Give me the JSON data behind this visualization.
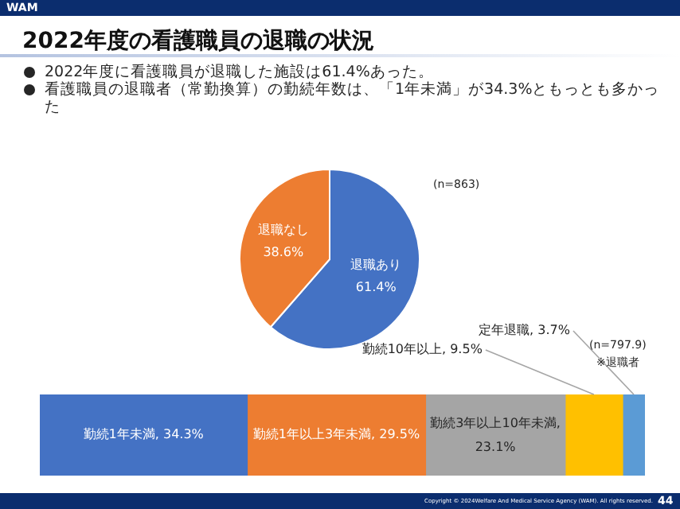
{
  "chart_data": [
    {
      "type": "pie",
      "title": "2022年度の看護職員の退職の状況",
      "annotations": [
        "WAM",
        "2022年度に看護職員が退職した施設は61.4%あった。",
        "看護職員の退職者（常勤換算）の勤続年数は、「1年未満」が34.3%ともっとも多かった",
        "(n=863)",
        "Copyright © 2024Welfare And Medical Service Agency (WAM). All rights reserved.",
        "44"
      ],
      "categories": [
        "退職あり",
        "退職なし"
      ],
      "values": [
        61.4,
        38.6
      ],
      "colors": [
        "#4472c4",
        "#ed7d31"
      ],
      "value_labels": [
        "61.4%",
        "38.6%"
      ],
      "legend": false
    },
    {
      "type": "bar",
      "orientation": "horizontal",
      "stacked": true,
      "categories": [
        null
      ],
      "legend": false,
      "annotations": [
        "(n=797.9)",
        "※退職者"
      ],
      "series": [
        {
          "color": "#4472c4",
          "values": [
            34.3
          ],
          "value_labels": [
            "勤続1年未満, 34.3%"
          ]
        },
        {
          "color": "#ed7d31",
          "values": [
            29.5
          ],
          "value_labels": [
            "勤続1年以上3年未満, 29.5%"
          ]
        },
        {
          "color": "#a5a5a5",
          "values": [
            23.1
          ],
          "value_labels": [
            "勤続3年以上10年未満, 23.1%"
          ]
        },
        {
          "color": "#ffc000",
          "values": [
            9.5
          ],
          "value_labels": [
            "勤続10年以上, 9.5%"
          ]
        },
        {
          "color": "#5b9bd5",
          "values": [
            3.7
          ],
          "value_labels": [
            "定年退職, 3.7%"
          ]
        }
      ]
    }
  ]
}
